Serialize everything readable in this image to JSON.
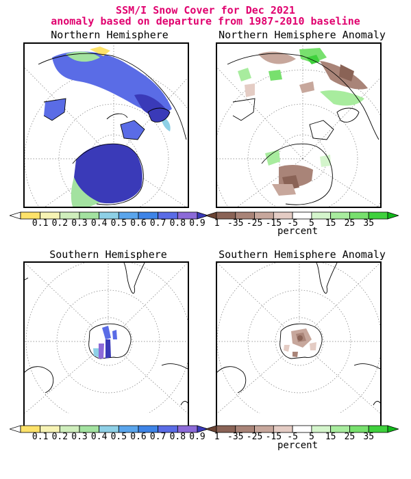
{
  "header": {
    "title_line1": "SSM/I Snow Cover for Dec 2021",
    "title_line2": "anomaly based on departure from 1987-2010 baseline"
  },
  "panels": {
    "nh_cover": {
      "title": "Northern Hemisphere"
    },
    "nh_anomaly": {
      "title": "Northern Hemisphere Anomaly"
    },
    "sh_cover": {
      "title": "Southern Hemisphere"
    },
    "sh_anomaly": {
      "title": "Southern Hemisphere Anomaly"
    }
  },
  "colorbars": {
    "cover": {
      "tick_labels": [
        "0.1",
        "0.2",
        "0.3",
        "0.4",
        "0.5",
        "0.6",
        "0.7",
        "0.8",
        "0.9",
        "1"
      ],
      "colors": [
        "#ffffff",
        "#fde26a",
        "#f7f3b4",
        "#cfeebc",
        "#a3e2a0",
        "#8ed0e6",
        "#5aa5ec",
        "#3e84e7",
        "#5a6ce6",
        "#8c6ad8",
        "#3a3ab8"
      ]
    },
    "anomaly": {
      "tick_labels": [
        "-35",
        "-25",
        "-15",
        "-5",
        "5",
        "15",
        "25",
        "35"
      ],
      "colors": [
        "#6b4434",
        "#8a6356",
        "#a98478",
        "#c7a79c",
        "#e4ccc4",
        "#ffffff",
        "#d4f5cc",
        "#a8ec9e",
        "#78e06e",
        "#3fd13d",
        "#11b81a"
      ],
      "unit": "percent"
    }
  },
  "colors": {
    "title": "#e0006e",
    "snow_high": "#3a3ab8",
    "snow_mid": "#5a6ce6",
    "snow_low": "#a3e2a0",
    "anomaly_negative": "#a98478",
    "anomaly_positive": "#78e06e"
  }
}
